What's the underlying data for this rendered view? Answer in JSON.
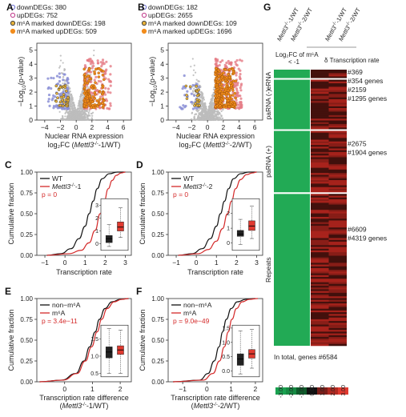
{
  "figure": {
    "colors": {
      "black": "#111111",
      "red": "#d42a2a",
      "blue_points": "#8b8fd6",
      "orange_points": "#f28c1c",
      "grey_points": "#bdbdbd",
      "heat_green": "#22aa55",
      "heat_red": "#b1241d"
    }
  },
  "chart_data": [
    {
      "panel": "A",
      "type": "scatter",
      "legend": [
        "downDEGs: 380",
        "upDEGs: 752",
        "m⁶A marked downDEGs: 198",
        "m⁶A marked upDEGs: 509"
      ],
      "xlabel_line1": "Nuclear RNA expression",
      "xlabel_line2_prefix": "log₂FC (",
      "xlabel_line2_gene": "Mettl3",
      "xlabel_line2_sup": "-/-",
      "xlabel_line2_suffix": "-1/WT)",
      "ylabel_prefix": "−Log",
      "ylabel_sub": "10",
      "ylabel_suffix": "(p-value)",
      "xlim": [
        -5,
        7
      ],
      "ylim": [
        0,
        5.5
      ],
      "xticks": [
        "−4",
        "−2",
        "0",
        "2",
        "4",
        "6"
      ],
      "xtick_values": [
        -4,
        -2,
        0,
        2,
        4,
        6
      ],
      "yticks": [
        "0",
        "1",
        "2",
        "3",
        "4",
        "5"
      ],
      "ytick_values": [
        0,
        1,
        2,
        3,
        4,
        5
      ],
      "counts": {
        "downDEGs": 380,
        "upDEGs": 752,
        "m6A_downDEGs": 198,
        "m6A_upDEGs": 509
      }
    },
    {
      "panel": "B",
      "type": "scatter",
      "legend": [
        "downDEGs: 182",
        "upDEGs: 2655",
        "m⁶A marked downDEGs: 109",
        "m⁶A marked upDEGs: 1696"
      ],
      "xlabel_line1": "Nuclear RNA expression",
      "xlabel_line2_prefix": "log₂FC (",
      "xlabel_line2_gene": "Mettl3",
      "xlabel_line2_sup": "-/-",
      "xlabel_line2_suffix": "-2/WT)",
      "ylabel_prefix": "−Log",
      "ylabel_sub": "10",
      "ylabel_suffix": "(p-value)",
      "xlim": [
        -5,
        7
      ],
      "ylim": [
        0,
        5.5
      ],
      "xticks": [
        "−4",
        "−2",
        "0",
        "2",
        "4",
        "6"
      ],
      "xtick_values": [
        -4,
        -2,
        0,
        2,
        4,
        6
      ],
      "yticks": [
        "0",
        "1",
        "2",
        "3",
        "4",
        "5"
      ],
      "ytick_values": [
        0,
        1,
        2,
        3,
        4,
        5
      ],
      "counts": {
        "downDEGs": 182,
        "upDEGs": 2655,
        "m6A_downDEGs": 109,
        "m6A_upDEGs": 1696
      }
    },
    {
      "panel": "C",
      "type": "line",
      "series": [
        {
          "name": "WT",
          "x": [
            -0.9,
            -0.2,
            0.3,
            0.7,
            1.0,
            1.2,
            1.4,
            1.6,
            1.85,
            2.2,
            2.6,
            3.0
          ],
          "y": [
            0,
            0.02,
            0.08,
            0.2,
            0.35,
            0.5,
            0.65,
            0.8,
            0.92,
            0.98,
            1.0,
            1.0
          ]
        },
        {
          "name_prefix": "Mettl3",
          "name_sup": "-/-",
          "name_suffix": "-1",
          "x": [
            -0.9,
            0.2,
            0.8,
            1.2,
            1.5,
            1.75,
            1.95,
            2.15,
            2.35,
            2.55,
            2.8,
            3.0
          ],
          "y": [
            0,
            0.02,
            0.06,
            0.15,
            0.3,
            0.5,
            0.65,
            0.8,
            0.9,
            0.96,
            0.99,
            1.0
          ]
        }
      ],
      "annotation": "p = 0",
      "xlabel": "Transcription rate",
      "ylabel": "Cumulative fraction",
      "xlim": [
        -1.4,
        3.3
      ],
      "ylim": [
        0,
        1.0
      ],
      "xticks": [
        "−1",
        "0",
        "1",
        "2",
        "3"
      ],
      "xtick_values": [
        -1,
        0,
        1,
        2,
        3
      ],
      "yticks": [
        "0.00",
        "0.25",
        "0.50",
        "0.75",
        "1.00"
      ],
      "ytick_values": [
        0,
        0.25,
        0.5,
        0.75,
        1.0
      ],
      "inset": {
        "type": "boxplot",
        "ylim": [
          -0.5,
          3.5
        ],
        "yticks": [
          "0",
          "1",
          "2",
          "3"
        ],
        "ytick_values": [
          0,
          1,
          2,
          3
        ],
        "boxes": [
          {
            "color": "black",
            "whisker_low": -0.2,
            "q1": 0.1,
            "median": 0.4,
            "q3": 0.65,
            "whisker_high": 1.5
          },
          {
            "color": "red",
            "whisker_low": 0.5,
            "q1": 1.0,
            "median": 1.3,
            "q3": 1.7,
            "whisker_high": 2.8
          }
        ]
      }
    },
    {
      "panel": "D",
      "type": "line",
      "series": [
        {
          "name": "WT",
          "x": [
            -0.9,
            -0.2,
            0.3,
            0.7,
            1.0,
            1.2,
            1.4,
            1.6,
            1.85,
            2.2,
            2.6,
            3.0
          ],
          "y": [
            0,
            0.02,
            0.08,
            0.2,
            0.35,
            0.5,
            0.65,
            0.8,
            0.92,
            0.98,
            1.0,
            1.0
          ]
        },
        {
          "name_prefix": "Mettl3",
          "name_sup": "-/-",
          "name_suffix": "-2",
          "x": [
            -0.9,
            0.1,
            0.6,
            1.0,
            1.3,
            1.55,
            1.75,
            1.95,
            2.2,
            2.5,
            2.8,
            3.0
          ],
          "y": [
            0,
            0.02,
            0.07,
            0.17,
            0.32,
            0.5,
            0.65,
            0.8,
            0.91,
            0.97,
            0.99,
            1.0
          ]
        }
      ],
      "annotation": "p = 0",
      "xlabel": "Transcription rate",
      "ylabel": "Cumulative fraction",
      "xlim": [
        -1.4,
        3.3
      ],
      "ylim": [
        0,
        1.0
      ],
      "xticks": [
        "−1",
        "0",
        "1",
        "2",
        "3"
      ],
      "xtick_values": [
        -1,
        0,
        1,
        2,
        3
      ],
      "yticks": [
        "0.00",
        "0.25",
        "0.50",
        "0.75",
        "1.00"
      ],
      "ytick_values": [
        0,
        0.25,
        0.5,
        0.75,
        1.0
      ],
      "inset": {
        "type": "boxplot",
        "ylim": [
          -0.5,
          3.0
        ],
        "yticks": [
          "0",
          "1",
          "2"
        ],
        "ytick_values": [
          0,
          1,
          2
        ],
        "boxes": [
          {
            "color": "black",
            "whisker_low": -0.1,
            "q1": 0.45,
            "median": 0.6,
            "q3": 0.85,
            "whisker_high": 1.6
          },
          {
            "color": "red",
            "whisker_low": 0.3,
            "q1": 0.85,
            "median": 1.15,
            "q3": 1.5,
            "whisker_high": 2.5
          }
        ]
      }
    },
    {
      "panel": "E",
      "type": "line",
      "series": [
        {
          "name": "non−m⁶A",
          "x": [
            -0.9,
            -0.1,
            0.4,
            0.7,
            0.9,
            1.1,
            1.25,
            1.45,
            1.7,
            2.0,
            2.3
          ],
          "y": [
            0,
            0.02,
            0.1,
            0.25,
            0.42,
            0.6,
            0.75,
            0.88,
            0.96,
            0.99,
            1.0
          ]
        },
        {
          "name": "m⁶A",
          "x": [
            -0.9,
            -0.05,
            0.45,
            0.75,
            0.97,
            1.17,
            1.33,
            1.53,
            1.78,
            2.05,
            2.3
          ],
          "y": [
            0,
            0.02,
            0.1,
            0.25,
            0.42,
            0.6,
            0.75,
            0.88,
            0.96,
            0.99,
            1.0
          ]
        }
      ],
      "annotation": "p = 3.4e−11",
      "xlabel_line1": "Transcription rate difference",
      "xlabel_line2_prefix": "(",
      "xlabel_line2_gene": "Mettl3",
      "xlabel_line2_sup": "-/-",
      "xlabel_line2_suffix": "-1/WT)",
      "ylabel": "Cumulative fraction",
      "xlim": [
        -1.0,
        2.4
      ],
      "ylim": [
        0,
        1.0
      ],
      "xticks": [
        "0",
        "1",
        "2"
      ],
      "xtick_values": [
        0,
        1,
        2
      ],
      "yticks": [
        "0.00",
        "0.25",
        "0.50",
        "0.75",
        "1.00"
      ],
      "ytick_values": [
        0,
        0.25,
        0.5,
        0.75,
        1.0
      ],
      "inset": {
        "type": "boxplot",
        "ylim": [
          0.4,
          1.9
        ],
        "yticks": [
          "0.5",
          "1.0",
          "1.5"
        ],
        "ytick_values": [
          0.5,
          1.0,
          1.5
        ],
        "boxes": [
          {
            "color": "black",
            "whisker_low": 0.5,
            "q1": 0.95,
            "median": 1.12,
            "q3": 1.27,
            "whisker_high": 1.8
          },
          {
            "color": "red",
            "whisker_low": 0.5,
            "q1": 1.05,
            "median": 1.18,
            "q3": 1.3,
            "whisker_high": 1.75
          }
        ]
      }
    },
    {
      "panel": "F",
      "type": "line",
      "series": [
        {
          "name": "non−m⁶A",
          "x": [
            -1.4,
            -0.3,
            0.05,
            0.3,
            0.5,
            0.65,
            0.8,
            1.0,
            1.25,
            1.6,
            2.0
          ],
          "y": [
            0,
            0.02,
            0.1,
            0.25,
            0.42,
            0.6,
            0.75,
            0.88,
            0.96,
            0.99,
            1.0
          ]
        },
        {
          "name": "m⁶A",
          "x": [
            -1.4,
            -0.15,
            0.25,
            0.52,
            0.72,
            0.88,
            1.03,
            1.22,
            1.45,
            1.75,
            2.1
          ],
          "y": [
            0,
            0.02,
            0.1,
            0.25,
            0.42,
            0.6,
            0.75,
            0.88,
            0.96,
            0.99,
            1.0
          ]
        }
      ],
      "annotation": "p = 9.0e−49",
      "xlabel_line1": "Transcription rate difference",
      "xlabel_line2_prefix": "(",
      "xlabel_line2_gene": "Mettl3",
      "xlabel_line2_sup": "-/-",
      "xlabel_line2_suffix": "-2/WT)",
      "ylabel": "Cumulative fraction",
      "xlim": [
        -1.6,
        2.3
      ],
      "ylim": [
        0,
        1.0
      ],
      "xticks": [
        "−1",
        "0",
        "1",
        "2"
      ],
      "xtick_values": [
        -1,
        0,
        1,
        2
      ],
      "yticks": [
        "0.00",
        "0.25",
        "0.50",
        "0.75",
        "1.00"
      ],
      "ytick_values": [
        0,
        0.25,
        0.5,
        0.75,
        1.0
      ],
      "inset": {
        "type": "boxplot",
        "ylim": [
          -0.2,
          1.6
        ],
        "yticks": [
          "0.0",
          "0.5",
          "1.0",
          "1.5"
        ],
        "ytick_values": [
          0.0,
          0.5,
          1.0,
          1.5
        ],
        "boxes": [
          {
            "color": "black",
            "whisker_low": -0.1,
            "q1": 0.2,
            "median": 0.42,
            "q3": 0.6,
            "whisker_high": 1.4
          },
          {
            "color": "red",
            "whisker_low": 0.1,
            "q1": 0.45,
            "median": 0.6,
            "q3": 0.75,
            "whisker_high": 1.45
          }
        ]
      }
    },
    {
      "panel": "G",
      "type": "heatmap",
      "column_labels": [
        {
          "gene": "Mettl3",
          "sup": "-/-",
          "suffix": "-1/WT"
        },
        {
          "gene": "Mettl3",
          "sup": "-/-",
          "suffix": "-2/WT"
        },
        {
          "gene": "Mettl3",
          "sup": "-/-",
          "suffix": "-1/WT"
        },
        {
          "gene": "Mettl3",
          "sup": "-/-",
          "suffix": "-2/WT"
        }
      ],
      "left_header_line1": "Log₂FC of m⁶A",
      "left_header_line2": "< -1",
      "right_header": "δ Transcription rate",
      "groups": [
        {
          "label": "eRNA",
          "count_label": "#369",
          "genes_label": "#354 genes",
          "count": 369
        },
        {
          "label": "paRNA (-)",
          "count_label": "#2159",
          "genes_label": "#1295 genes",
          "count": 2159
        },
        {
          "label": "paRNA (+)",
          "count_label": "#2675",
          "genes_label": "#1904 genes",
          "count": 2675
        },
        {
          "label": "Repeats",
          "count_label": "#6609",
          "genes_label": "#4319 genes",
          "count": 6609
        }
      ],
      "total_label": "In total, genes #6584",
      "colorbar": {
        "ticks": [
          "-3.00",
          "-2.00",
          "-1.00",
          "0.00",
          "1.00",
          "2.00",
          "3.00"
        ],
        "tick_values": [
          -3,
          -2,
          -1,
          0,
          1,
          2,
          3
        ],
        "colors": [
          "#1aa150",
          "#168a43",
          "#0f5a2b",
          "#111111",
          "#7a1f1a",
          "#b02a22",
          "#e03a30"
        ]
      }
    }
  ]
}
